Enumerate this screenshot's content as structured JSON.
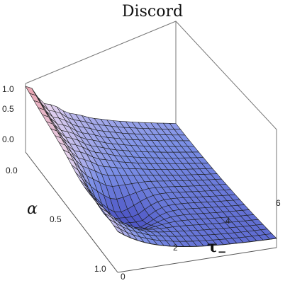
{
  "chart_data": {
    "type": "surface3d",
    "title": "Discord",
    "xlabel": {
      "main": "τ",
      "sub": "−"
    },
    "ylabel": "α",
    "zlabel": "",
    "x_range": [
      0,
      6.5
    ],
    "y_range": [
      0,
      1
    ],
    "z_range": [
      0,
      1
    ],
    "x_ticks": [
      "0",
      "2",
      "4",
      "6"
    ],
    "y_ticks": [
      "0.0",
      "0.5",
      "1.0"
    ],
    "z_ticks": [
      "0.0",
      "0.5",
      "1.0"
    ],
    "extra_ticks": [
      "0.0"
    ],
    "colors": {
      "high": "#e89aa3",
      "mid": "#e7d4ef",
      "low": "#7b8fe6",
      "deep": "#4d55c4",
      "mesh": "#1c1c1c",
      "box": "#555555"
    },
    "surface_description": "Discord decreases with tau; near tau=0 values high with oscillations; deep valley around alpha≈0.5, tau≈1.5"
  }
}
